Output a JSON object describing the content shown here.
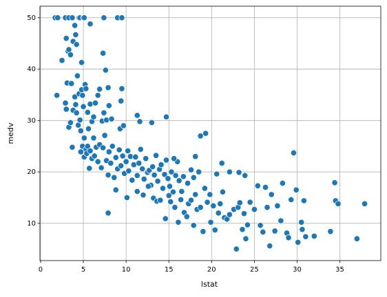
{
  "chart_data": {
    "type": "scatter",
    "xlabel": "lstat",
    "ylabel": "medv",
    "color": "#1f77b4",
    "grid": true,
    "xlim": [
      -0.08,
      39.79
    ],
    "ylim": [
      2.75,
      52.25
    ],
    "xticks": [
      0,
      5,
      10,
      15,
      20,
      25,
      30,
      35
    ],
    "yticks": [
      10,
      20,
      30,
      40,
      50
    ],
    "x": [
      1.7,
      2.0,
      2.9,
      3.3,
      3.7,
      4.5,
      4.6,
      5.0,
      5.1,
      7.4,
      9.0,
      9.5,
      2.5,
      3.0,
      3.2,
      3.3,
      3.5,
      3.8,
      4.0,
      4.1,
      4.2,
      4.8,
      5.8,
      7.3,
      7.6,
      1.9,
      2.9,
      3.0,
      3.1,
      3.3,
      3.5,
      3.6,
      3.7,
      3.8,
      4.0,
      4.1,
      4.2,
      4.3,
      4.4,
      4.5,
      4.6,
      4.7,
      4.8,
      4.9,
      5.0,
      5.1,
      5.2,
      5.3,
      5.5,
      5.6,
      5.8,
      6.0,
      6.2,
      6.4,
      6.7,
      6.9,
      7.2,
      7.4,
      7.7,
      7.9,
      8.0,
      8.3,
      9.3,
      9.4,
      9.5,
      9.7,
      11.3,
      11.6,
      13.0,
      14.7,
      4.7,
      4.9,
      5.1,
      5.3,
      5.4,
      5.5,
      5.7,
      5.8,
      6.0,
      6.2,
      6.3,
      6.5,
      6.7,
      6.9,
      7.1,
      7.3,
      7.5,
      7.7,
      7.9,
      8.0,
      8.2,
      8.4,
      8.6,
      8.8,
      9.0,
      9.2,
      9.4,
      9.6,
      9.8,
      10.0,
      10.2,
      10.3,
      10.5,
      10.7,
      10.9,
      11.1,
      11.3,
      11.5,
      11.7,
      11.9,
      12.1,
      12.3,
      12.5,
      12.7,
      12.9,
      13.1,
      13.3,
      13.5,
      13.7,
      13.9,
      14.1,
      14.3,
      14.5,
      14.7,
      14.9,
      15.1,
      15.3,
      15.5,
      15.8,
      16.0,
      7.9,
      8.8,
      10.1,
      11.3,
      12.0,
      13.2,
      13.6,
      14.6,
      15.2,
      15.7,
      16.1,
      16.4,
      16.8,
      17.1,
      17.3,
      17.6,
      17.9,
      18.1,
      18.3,
      18.7,
      19.0,
      19.2,
      19.5,
      19.9,
      20.2,
      20.4,
      20.8,
      21.0,
      21.3,
      21.5,
      21.8,
      22.1,
      22.6,
      22.9,
      23.1,
      23.3,
      23.6,
      23.8,
      24.0,
      24.2,
      24.5,
      25.0,
      25.4,
      25.7,
      26.0,
      26.3,
      26.5,
      26.8,
      27.0,
      27.4,
      27.7,
      28.1,
      28.3,
      28.8,
      29.0,
      29.3,
      29.6,
      29.9,
      30.1,
      30.5,
      30.6,
      30.8,
      31.0,
      32.0,
      33.9,
      34.4,
      34.5,
      34.8,
      37.0,
      37.9,
      16.2,
      16.7,
      17.2,
      17.6,
      18.1,
      18.5,
      18.7,
      19.3,
      19.8,
      20.6,
      21.2,
      22.1,
      23.2,
      23.9,
      16.5,
      17.9,
      15.0,
      14.0,
      12.6,
      15.6
    ],
    "values": [
      50,
      50,
      50,
      50,
      50,
      50,
      50,
      50,
      50,
      50,
      50,
      50,
      41.7,
      46,
      43.5,
      43.8,
      42.8,
      45.4,
      48.5,
      46.7,
      44.8,
      41.3,
      48.8,
      43.1,
      39.8,
      34.9,
      33.4,
      32.2,
      37.3,
      28.7,
      29.6,
      37.2,
      24.8,
      32.0,
      34.6,
      33.1,
      31.5,
      38.7,
      29.1,
      35.2,
      30.1,
      28.0,
      36.0,
      34.9,
      32.7,
      26.6,
      37.0,
      36.2,
      31.6,
      28.4,
      33.2,
      29.8,
      30.7,
      33.4,
      34.9,
      36.1,
      29.9,
      31.5,
      30.1,
      36.4,
      32.9,
      30.3,
      28.4,
      33.8,
      36.2,
      29.0,
      31.0,
      29.8,
      29.6,
      30.7,
      23.9,
      25.0,
      22.9,
      24.4,
      23.6,
      25.0,
      20.7,
      24.1,
      22.6,
      26.6,
      23.1,
      24.8,
      22.0,
      25.3,
      20.8,
      24.7,
      27.1,
      22.2,
      19.4,
      23.9,
      21.7,
      25.0,
      18.9,
      22.8,
      20.6,
      24.3,
      21.2,
      23.1,
      19.7,
      22.0,
      24.1,
      20.2,
      23.0,
      18.4,
      21.4,
      22.9,
      19.3,
      21.7,
      24.4,
      20.6,
      18.6,
      22.6,
      19.9,
      20.3,
      17.4,
      21.0,
      19.4,
      23.2,
      18.2,
      20.5,
      21.4,
      16.8,
      19.5,
      22.3,
      18.7,
      17.2,
      20.0,
      16.1,
      19.3,
      22.0,
      12.0,
      16.5,
      15.0,
      16.2,
      15.5,
      14.9,
      14.3,
      10.9,
      14.2,
      13.1,
      10.2,
      14.6,
      12.1,
      11.3,
      13.8,
      14.5,
      9.6,
      15.6,
      12.7,
      13.1,
      8.4,
      16.8,
      14.1,
      10.2,
      13.4,
      8.7,
      12.0,
      13.8,
      16.1,
      11.1,
      10.8,
      11.7,
      12.7,
      5.0,
      13.1,
      14.0,
      8.8,
      11.9,
      7.0,
      9.7,
      14.1,
      12.7,
      17.3,
      9.6,
      8.3,
      17.0,
      13.1,
      5.6,
      15.6,
      8.5,
      13.4,
      10.5,
      17.8,
      8.1,
      7.2,
      14.6,
      23.7,
      16.5,
      6.3,
      10.2,
      8.8,
      14.4,
      7.4,
      7.5,
      8.4,
      17.9,
      14.4,
      13.8,
      7.0,
      13.8,
      18.3,
      19.1,
      17.8,
      20.4,
      23.0,
      20.0,
      27.0,
      27.5,
      15.6,
      19.6,
      21.7,
      20.0,
      19.9,
      19.3,
      16.2,
      18.9,
      15.4,
      14.5,
      17.2,
      22.6
    ]
  }
}
